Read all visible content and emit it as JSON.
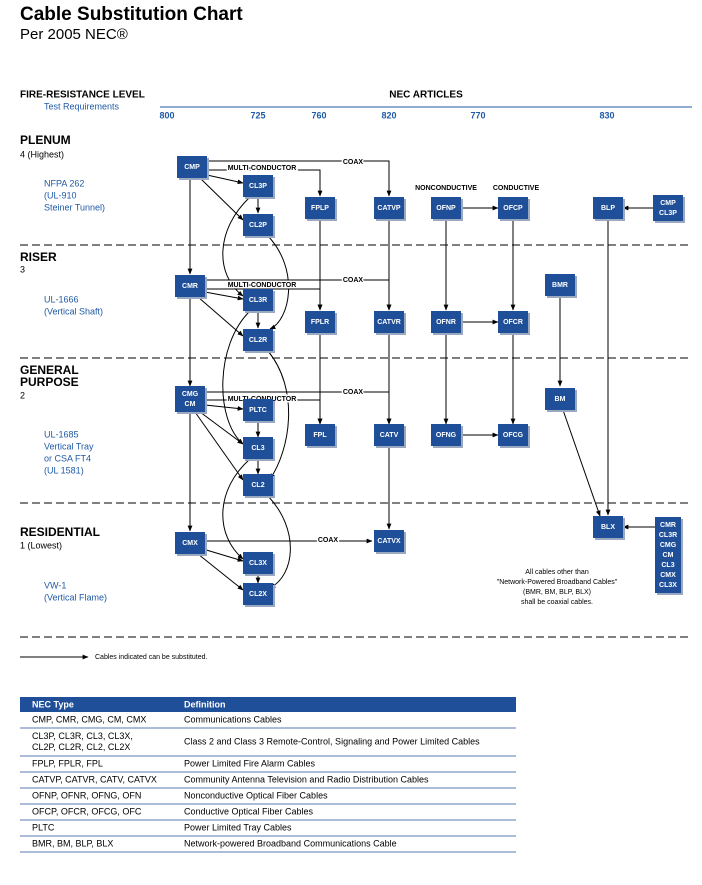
{
  "header": {
    "title": "Cable Substitution Chart",
    "subtitle": "Per 2005 NEC®"
  },
  "columns": {
    "level_heading": "FIRE-RESISTANCE LEVEL",
    "test_heading": "Test Requirements",
    "articles_heading": "NEC ARTICLES",
    "articles": [
      "800",
      "725",
      "760",
      "820",
      "770",
      "830"
    ]
  },
  "levels": [
    {
      "name": [
        "PLENUM"
      ],
      "rating": "4 (Highest)",
      "test": [
        "NFPA 262",
        "(UL-910",
        "Steiner Tunnel)"
      ]
    },
    {
      "name": [
        "RISER"
      ],
      "rating": "3",
      "test": [
        "UL-1666",
        "(Vertical Shaft)"
      ]
    },
    {
      "name": [
        "GENERAL",
        "PURPOSE"
      ],
      "rating": "2",
      "test": [
        "UL-1685",
        "Vertical Tray",
        "or CSA FT4",
        "(UL 1581)"
      ]
    },
    {
      "name": [
        "RESIDENTIAL"
      ],
      "rating": "1 (Lowest)",
      "test": [
        "VW-1",
        "(Vertical Flame)"
      ]
    }
  ],
  "nodes": [
    [
      "CMP"
    ],
    [
      "CL3P"
    ],
    [
      "CL2P"
    ],
    [
      "FPLP"
    ],
    [
      "CATVP"
    ],
    [
      "OFNP"
    ],
    [
      "OFCP"
    ],
    [
      "BLP"
    ],
    [
      "CMP",
      "CL3P"
    ],
    [
      "CMR"
    ],
    [
      "CL3R"
    ],
    [
      "CL2R"
    ],
    [
      "FPLR"
    ],
    [
      "CATVR"
    ],
    [
      "OFNR"
    ],
    [
      "OFCR"
    ],
    [
      "BMR"
    ],
    [
      "CMG",
      "CM"
    ],
    [
      "PLTC"
    ],
    [
      "CL3"
    ],
    [
      "CL2"
    ],
    [
      "FPL"
    ],
    [
      "CATV"
    ],
    [
      "OFNG"
    ],
    [
      "OFCG"
    ],
    [
      "BM"
    ],
    [
      "CMX"
    ],
    [
      "CL3X"
    ],
    [
      "CL2X"
    ],
    [
      "CATVX"
    ],
    [
      "BLX"
    ],
    [
      "CMR",
      "CL3R",
      "CMG",
      "CM",
      "CL3",
      "CMX",
      "CL3X"
    ]
  ],
  "annotations": [
    "MULTI-CONDUCTOR",
    "COAX",
    "NONCONDUCTIVE",
    "CONDUCTIVE",
    "MULTI-CONDUCTOR",
    "COAX",
    "MULTI-CONDUCTOR",
    "COAX",
    "COAX"
  ],
  "note": [
    "All cables other than",
    "\"Network-Powered Broadband Cables\"",
    "(BMR, BM, BLP, BLX)",
    "shall be coaxial cables."
  ],
  "legend": "Cables indicated can be substituted.",
  "table": {
    "headers": [
      "NEC Type",
      "Definition"
    ],
    "rows": [
      [
        [
          "CMP, CMR, CMG, CM, CMX"
        ],
        "Communications Cables"
      ],
      [
        [
          "CL3P, CL3R, CL3, CL3X,",
          "CL2P, CL2R, CL2, CL2X"
        ],
        "Class 2 and Class 3 Remote-Control, Signaling and Power Limited Cables"
      ],
      [
        [
          "FPLP, FPLR, FPL"
        ],
        "Power Limited Fire Alarm Cables"
      ],
      [
        [
          "CATVP, CATVR, CATV, CATVX"
        ],
        "Community Antenna Television and Radio Distribution Cables"
      ],
      [
        [
          "OFNP, OFNR, OFNG, OFN"
        ],
        "Nonconductive Optical Fiber Cables"
      ],
      [
        [
          "OFCP, OFCR, OFCG, OFC"
        ],
        "Conductive Optical Fiber Cables"
      ],
      [
        [
          "PLTC"
        ],
        "Power Limited Tray Cables"
      ],
      [
        [
          "BMR, BM, BLP, BLX"
        ],
        "Network-powered Broadband Communications Cable"
      ]
    ]
  }
}
